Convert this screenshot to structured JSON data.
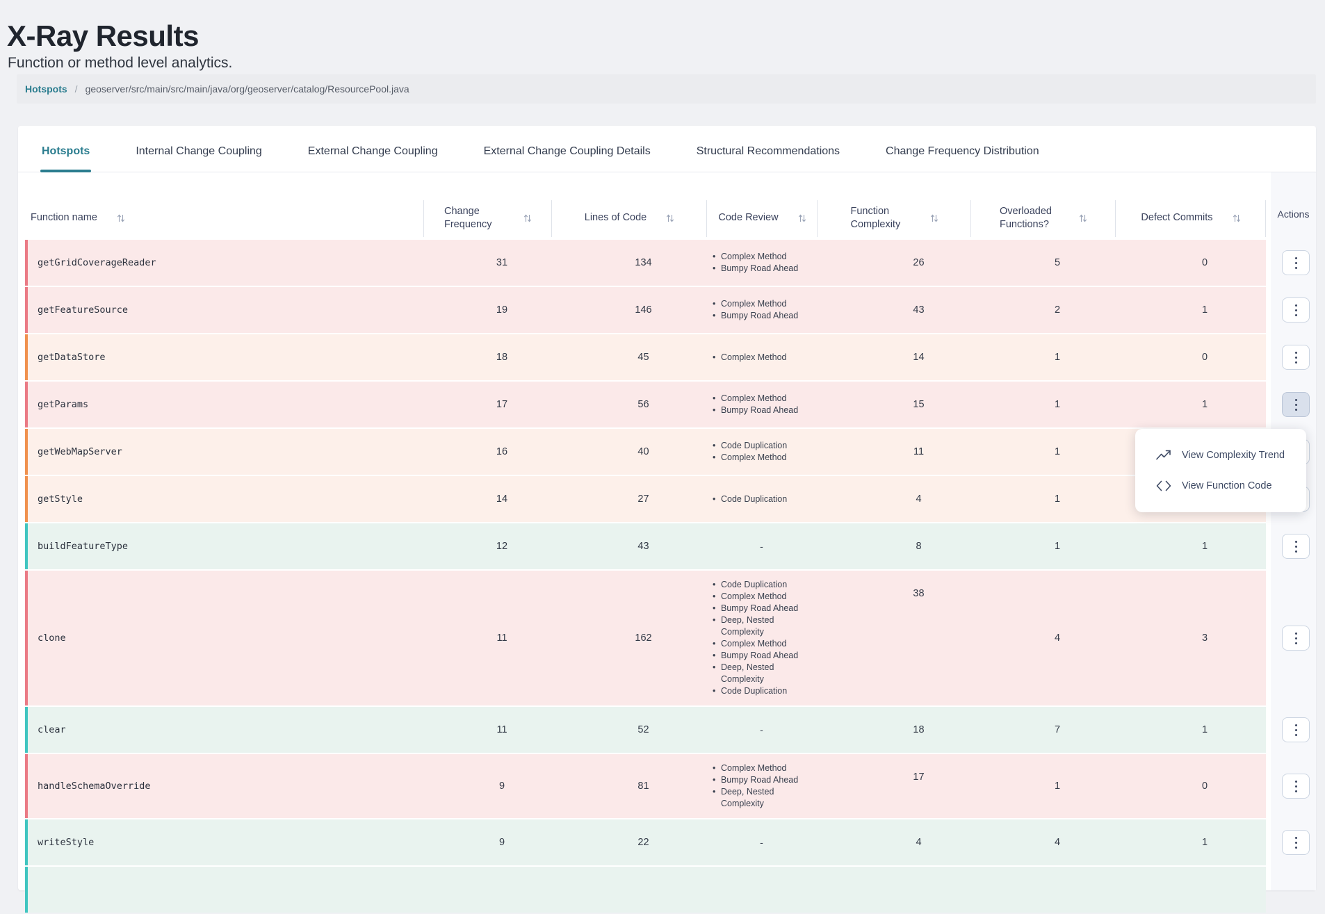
{
  "page": {
    "title": "X-Ray Results",
    "subtitle": "Function or method level analytics.",
    "breadcrumb": {
      "link": "Hotspots",
      "separator": "/",
      "current": "geoserver/src/main/src/main/java/org/geoserver/catalog/ResourcePool.java"
    }
  },
  "tabs": [
    {
      "label": "Hotspots",
      "active": true
    },
    {
      "label": "Internal Change Coupling",
      "active": false
    },
    {
      "label": "External Change Coupling",
      "active": false
    },
    {
      "label": "External Change Coupling Details",
      "active": false
    },
    {
      "label": "Structural Recommendations",
      "active": false
    },
    {
      "label": "Change Frequency Distribution",
      "active": false
    }
  ],
  "table": {
    "columns": [
      "Function name",
      "Change Frequency",
      "Lines of Code",
      "Code Review",
      "Function Complexity",
      "Overloaded Functions?",
      "Defect Commits",
      "Actions"
    ],
    "empty_cell": "-",
    "rows": [
      {
        "name": "getGridCoverageReader",
        "severity": "red",
        "change_frequency": 31,
        "lines_of_code": 134,
        "code_review": [
          "Complex Method",
          "Bumpy Road Ahead"
        ],
        "function_complexity": 26,
        "overloaded_functions": 5,
        "defect_commits": 0,
        "menu_open": false
      },
      {
        "name": "getFeatureSource",
        "severity": "red",
        "change_frequency": 19,
        "lines_of_code": 146,
        "code_review": [
          "Complex Method",
          "Bumpy Road Ahead"
        ],
        "function_complexity": 43,
        "overloaded_functions": 2,
        "defect_commits": 1,
        "menu_open": false
      },
      {
        "name": "getDataStore",
        "severity": "orange",
        "change_frequency": 18,
        "lines_of_code": 45,
        "code_review": [
          "Complex Method"
        ],
        "function_complexity": 14,
        "overloaded_functions": 1,
        "defect_commits": 0,
        "menu_open": false
      },
      {
        "name": "getParams",
        "severity": "red",
        "change_frequency": 17,
        "lines_of_code": 56,
        "code_review": [
          "Complex Method",
          "Bumpy Road Ahead"
        ],
        "function_complexity": 15,
        "overloaded_functions": 1,
        "defect_commits": 1,
        "menu_open": true
      },
      {
        "name": "getWebMapServer",
        "severity": "orange",
        "change_frequency": 16,
        "lines_of_code": 40,
        "code_review": [
          "Code Duplication",
          "Complex Method"
        ],
        "function_complexity": 11,
        "overloaded_functions": 1,
        "defect_commits": null,
        "menu_open": false
      },
      {
        "name": "getStyle",
        "severity": "orange",
        "change_frequency": 14,
        "lines_of_code": 27,
        "code_review": [
          "Code Duplication"
        ],
        "function_complexity": 4,
        "overloaded_functions": 1,
        "defect_commits": null,
        "menu_open": false
      },
      {
        "name": "buildFeatureType",
        "severity": "teal",
        "change_frequency": 12,
        "lines_of_code": 43,
        "code_review": [],
        "function_complexity": 8,
        "overloaded_functions": 1,
        "defect_commits": 1,
        "menu_open": false
      },
      {
        "name": "clone",
        "severity": "red",
        "change_frequency": 11,
        "lines_of_code": 162,
        "code_review": [
          "Code Duplication",
          "Complex Method",
          "Bumpy Road Ahead",
          "Deep, Nested Complexity",
          "Complex Method",
          "Bumpy Road Ahead",
          "Deep, Nested Complexity",
          "Code Duplication"
        ],
        "function_complexity": 38,
        "overloaded_functions": 4,
        "defect_commits": 3,
        "menu_open": false
      },
      {
        "name": "clear",
        "severity": "teal",
        "change_frequency": 11,
        "lines_of_code": 52,
        "code_review": [],
        "function_complexity": 18,
        "overloaded_functions": 7,
        "defect_commits": 1,
        "menu_open": false
      },
      {
        "name": "handleSchemaOverride",
        "severity": "red",
        "change_frequency": 9,
        "lines_of_code": 81,
        "code_review": [
          "Complex Method",
          "Bumpy Road Ahead",
          "Deep, Nested Complexity"
        ],
        "function_complexity": 17,
        "overloaded_functions": 1,
        "defect_commits": 0,
        "menu_open": false
      },
      {
        "name": "writeStyle",
        "severity": "teal",
        "change_frequency": 9,
        "lines_of_code": 22,
        "code_review": [],
        "function_complexity": 4,
        "overloaded_functions": 4,
        "defect_commits": 1,
        "menu_open": false
      }
    ],
    "partial_row": {
      "severity": "teal"
    }
  },
  "action_menu": {
    "items": [
      {
        "icon": "trend-up-icon",
        "label": "View Complexity Trend"
      },
      {
        "icon": "code-icon",
        "label": "View Function Code"
      }
    ]
  },
  "colors": {
    "accent": "#2b7d8f",
    "severity": {
      "red": {
        "border": "#ea7a85",
        "background": "#fbe9e9"
      },
      "orange": {
        "border": "#f0914e",
        "background": "#fdf0ea"
      },
      "teal": {
        "border": "#40c5c0",
        "background": "#e9f3ef"
      }
    }
  }
}
